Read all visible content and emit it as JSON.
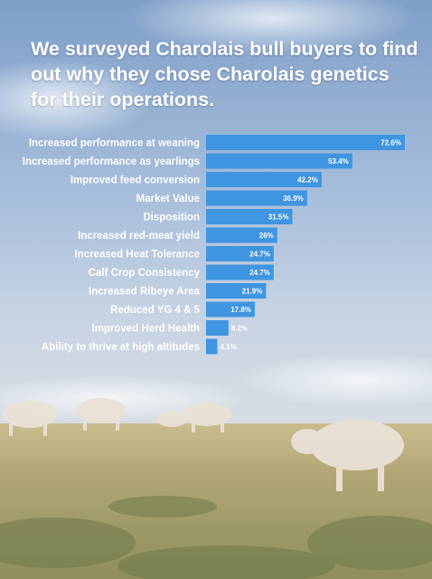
{
  "headline": "We surveyed Charolais bull buyers to find out why they chose Charolais genetics for their operations.",
  "colors": {
    "bar": "#3f95e0",
    "label_text": "#ffffff",
    "sky": "#9db7d6",
    "grass": "#b7aa7a"
  },
  "chart_data": {
    "type": "bar",
    "orientation": "horizontal",
    "title": "",
    "xlabel": "",
    "ylabel": "",
    "xlim": [
      0,
      100
    ],
    "grid": false,
    "categories": [
      "Increased performance at weaning",
      "Increased performance as yearlings",
      "Improved feed conversion",
      "Market Value",
      "Disposition",
      "Increased red-meat yield",
      "Increased Heat Tolerance",
      "Calf Crop Consistency",
      "Increased Ribeye Area",
      "Reduced YG 4 & 5",
      "Improved Herd Health",
      "Ability to thrive at high altitudes"
    ],
    "values": [
      72.6,
      53.4,
      42.2,
      36.9,
      31.5,
      26,
      24.7,
      24.7,
      21.9,
      17.8,
      8.2,
      4.1
    ],
    "data_labels": [
      "72.6%",
      "53.4%",
      "42.2%",
      "36.9%",
      "31.5%",
      "26%",
      "24.7%",
      "24.7%",
      "21.9%",
      "17.8%",
      "8.2%",
      "4.1%"
    ]
  }
}
